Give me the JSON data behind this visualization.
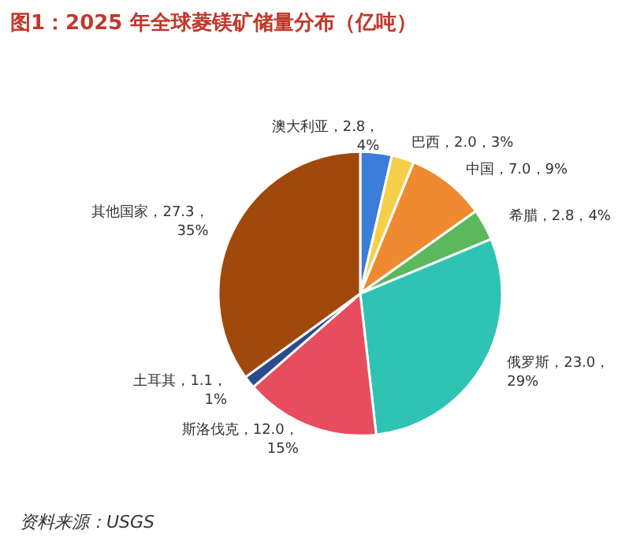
{
  "chart_data": {
    "type": "pie",
    "title": "图1：2025 年全球菱镁矿储量分布（亿吨）",
    "categories": [
      "澳大利亚",
      "巴西",
      "中国",
      "希腊",
      "俄罗斯",
      "斯洛伐克",
      "土耳其",
      "其他国家"
    ],
    "values": [
      2.8,
      2.0,
      7.0,
      2.8,
      23.0,
      12.0,
      1.1,
      27.3
    ],
    "value_labels": [
      "2.8，4%",
      "2.0，3%",
      "7.0，9%",
      "2.8，4%",
      "23.0，29%",
      "12.0，15%",
      "1.1，1%",
      "27.3，35%"
    ],
    "colors": [
      "#3b7dd8",
      "#f6cf4a",
      "#ef8a30",
      "#5cb85c",
      "#2fc3b4",
      "#e84c5f",
      "#2b4b8c",
      "#a0490b"
    ],
    "annotations": [
      "资料来源：USGS"
    ]
  }
}
